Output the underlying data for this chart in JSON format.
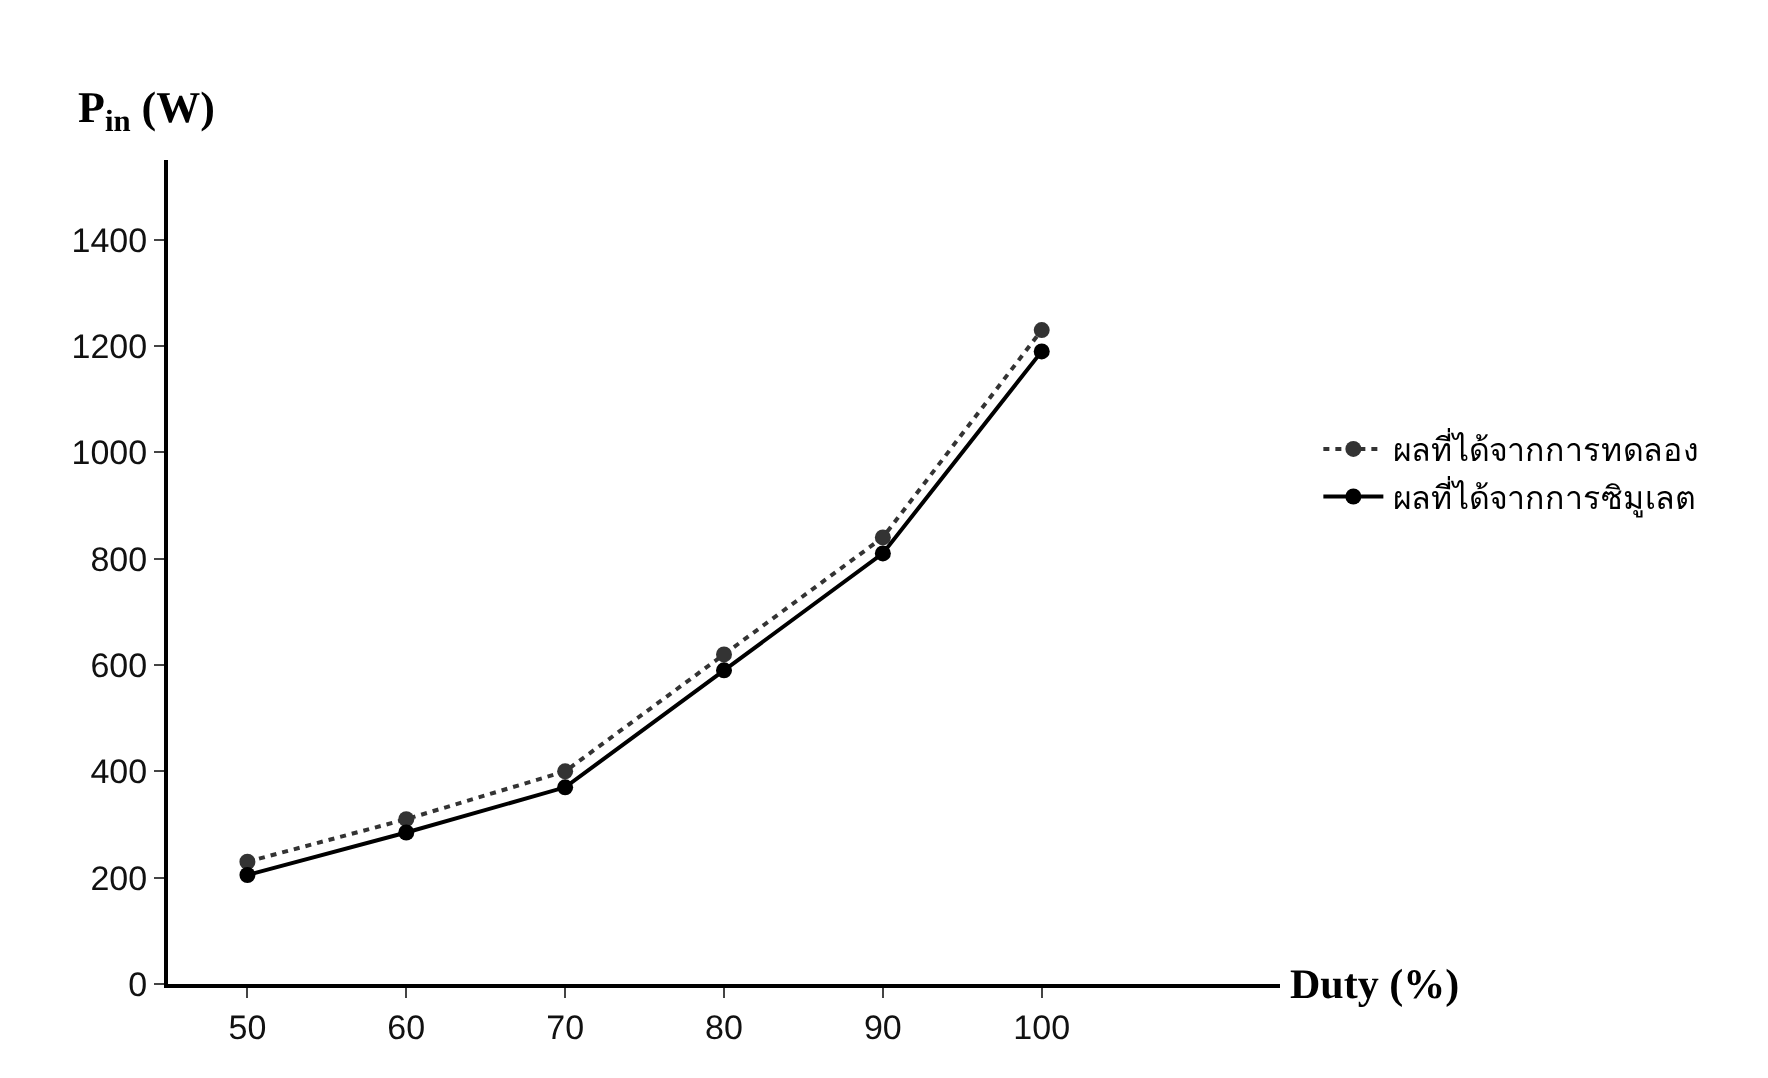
{
  "chart_data": {
    "type": "line",
    "xlabel": "Duty (%)",
    "ylabel": "P$_{in}$ (W)",
    "x": [
      50,
      60,
      70,
      80,
      90,
      100
    ],
    "series": [
      {
        "name": "ผลที่ได้จากการทดลอง",
        "color": "#333333",
        "line_style": "dotted",
        "values": [
          230,
          310,
          400,
          620,
          840,
          1230
        ]
      },
      {
        "name": "ผลที่ได้จากการซิมูเลต",
        "color": "#000000",
        "line_style": "solid",
        "values": [
          205,
          285,
          370,
          590,
          810,
          1190
        ]
      }
    ],
    "xlim": [
      45,
      115
    ],
    "xticks": [
      50,
      60,
      70,
      80,
      90,
      100
    ],
    "ylim": [
      0,
      1550
    ],
    "yticks": [
      0,
      200,
      400,
      600,
      800,
      1000,
      1200,
      1400
    ],
    "grid": false,
    "legend": "right",
    "marker": "circle"
  }
}
